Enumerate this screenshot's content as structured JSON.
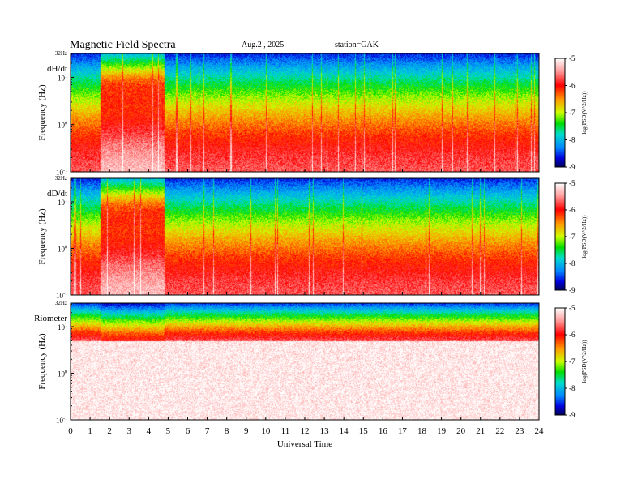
{
  "header": {
    "title": "Magnetic  Field  Spectra",
    "date": "Aug.2  , 2025",
    "station": "station=GAK"
  },
  "chart_data": [
    {
      "type": "heatmap",
      "panel_label": "dH/dt",
      "ylabel": "Frequency  (Hz)",
      "ytick_labels": [
        "32Hz",
        "10",
        "10",
        "10"
      ],
      "ytick_exponents": [
        "",
        "1",
        "0",
        "-1"
      ],
      "ytick_values": [
        32,
        10,
        1,
        0.1
      ],
      "x_range": [
        0,
        24
      ],
      "y_range": [
        0.1,
        32
      ],
      "y_scale": "log",
      "colorbar": {
        "label": "log(PSD(V^2/Hz))",
        "ticks": [
          "-5",
          "-6",
          "-7",
          "-8",
          "-9"
        ],
        "range": [
          -9,
          -5
        ]
      }
    },
    {
      "type": "heatmap",
      "panel_label": "dD/dt",
      "ylabel": "Frequency  (Hz)",
      "ytick_labels": [
        "32Hz",
        "10",
        "10",
        "10"
      ],
      "ytick_exponents": [
        "",
        "1",
        "0",
        "-1"
      ],
      "ytick_values": [
        32,
        10,
        1,
        0.1
      ],
      "x_range": [
        0,
        24
      ],
      "y_range": [
        0.1,
        32
      ],
      "y_scale": "log",
      "colorbar": {
        "label": "log(PSD(V^2/Hz))",
        "ticks": [
          "-5",
          "-6",
          "-7",
          "-8",
          "-9"
        ],
        "range": [
          -9,
          -5
        ]
      }
    },
    {
      "type": "heatmap",
      "panel_label": "Riometer",
      "ylabel": "Frequency  (Hz)",
      "ytick_labels": [
        "32Hz",
        "10",
        "10",
        "10"
      ],
      "ytick_exponents": [
        "",
        "1",
        "0",
        "-1"
      ],
      "ytick_values": [
        32,
        10,
        1,
        0.1
      ],
      "x_range": [
        0,
        24
      ],
      "y_range": [
        0.1,
        32
      ],
      "y_scale": "log",
      "xlabel": "Universal  Time",
      "xtick_labels": [
        "0",
        "1",
        "2",
        "3",
        "4",
        "5",
        "6",
        "7",
        "8",
        "9",
        "10",
        "11",
        "12",
        "13",
        "14",
        "15",
        "16",
        "17",
        "18",
        "19",
        "20",
        "21",
        "22",
        "23",
        "24"
      ],
      "colorbar": {
        "label": "log(PSD(V^2/Hz))",
        "ticks": [
          "-5",
          "-6",
          "-7",
          "-8",
          "-9"
        ],
        "range": [
          -9,
          -5
        ]
      }
    }
  ]
}
